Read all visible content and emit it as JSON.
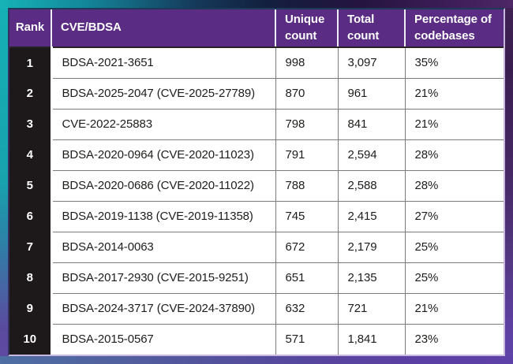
{
  "chart_data": {
    "type": "table",
    "columns": [
      "Rank",
      "CVE/BDSA",
      "Unique count",
      "Total count",
      "Percentage of codebases"
    ],
    "rows": [
      {
        "rank": "1",
        "cve": "BDSA-2021-3651",
        "unique_count": "998",
        "total_count": "3,097",
        "percentage": "35%"
      },
      {
        "rank": "2",
        "cve": "BDSA-2025-2047 (CVE-2025-27789)",
        "unique_count": "870",
        "total_count": "961",
        "percentage": "21%"
      },
      {
        "rank": "3",
        "cve": "CVE-2022-25883",
        "unique_count": "798",
        "total_count": "841",
        "percentage": "21%"
      },
      {
        "rank": "4",
        "cve": "BDSA-2020-0964 (CVE-2020-11023)",
        "unique_count": "791",
        "total_count": "2,594",
        "percentage": "28%"
      },
      {
        "rank": "5",
        "cve": "BDSA-2020-0686 (CVE-2020-11022)",
        "unique_count": "788",
        "total_count": "2,588",
        "percentage": "28%"
      },
      {
        "rank": "6",
        "cve": "BDSA-2019-1138 (CVE-2019-11358)",
        "unique_count": "745",
        "total_count": "2,415",
        "percentage": "27%"
      },
      {
        "rank": "7",
        "cve": "BDSA-2014-0063",
        "unique_count": "672",
        "total_count": "2,179",
        "percentage": "25%"
      },
      {
        "rank": "8",
        "cve": "BDSA-2017-2930 (CVE-2015-9251)",
        "unique_count": "651",
        "total_count": "2,135",
        "percentage": "25%"
      },
      {
        "rank": "9",
        "cve": "BDSA-2024-3717 (CVE-2024-37890)",
        "unique_count": "632",
        "total_count": "721",
        "percentage": "21%"
      },
      {
        "rank": "10",
        "cve": "BDSA-2015-0567",
        "unique_count": "571",
        "total_count": "1,841",
        "percentage": "23%"
      }
    ]
  },
  "colors": {
    "header_bg": "#5b2c83",
    "rank_bg": "#1d191a",
    "body_text": "#1d1d1b",
    "grid_line": "#7c7c7c",
    "header_separator": "#efecf4",
    "table_outline": "#c9b8de",
    "frame_teal": "#15b0b5",
    "frame_navy": "#13203f",
    "frame_dark_purple": "#3a1d52",
    "frame_purple": "#5d3fa4",
    "frame_blue": "#4c6da1"
  }
}
